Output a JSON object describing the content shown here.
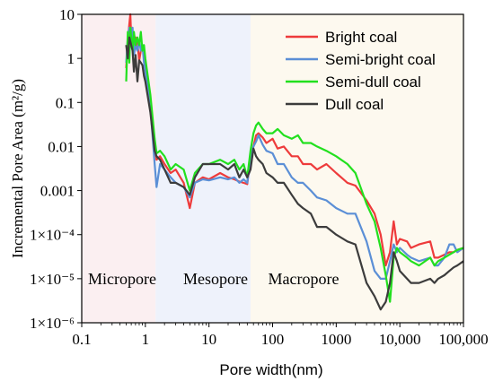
{
  "chart_data": {
    "type": "line",
    "xlabel": "Pore width(nm)",
    "ylabel": "Incremental Pore Area (m²/g)",
    "x_scale": "log",
    "y_scale": "log",
    "xlim": [
      0.1,
      100000
    ],
    "ylim": [
      1e-06,
      10
    ],
    "x_ticks": [
      {
        "value": 0.1,
        "label": "0.1"
      },
      {
        "value": 1,
        "label": "1"
      },
      {
        "value": 10,
        "label": "10"
      },
      {
        "value": 100,
        "label": "100"
      },
      {
        "value": 1000,
        "label": "1000"
      },
      {
        "value": 10000,
        "label": "10,000"
      },
      {
        "value": 100000,
        "label": "100,000"
      }
    ],
    "y_ticks": [
      {
        "value": 10,
        "label": "10"
      },
      {
        "value": 1,
        "label": "1"
      },
      {
        "value": 0.1,
        "label": "0.1"
      },
      {
        "value": 0.01,
        "label": "0.01"
      },
      {
        "value": 0.001,
        "label": "0.001"
      },
      {
        "value": 0.0001,
        "label": "1×10⁻⁴"
      },
      {
        "value": 1e-05,
        "label": "1×10⁻⁵"
      },
      {
        "value": 1e-06,
        "label": "1×10⁻⁶"
      }
    ],
    "regions": [
      {
        "label": "Micropore",
        "from": 0.1,
        "to": 1.45,
        "color": "#fbeff1"
      },
      {
        "label": "Mesopore",
        "from": 1.45,
        "to": 45,
        "color": "#eef2fb"
      },
      {
        "label": "Macropore",
        "from": 45,
        "to": 100000,
        "color": "#fdf9ef"
      }
    ],
    "legend_position": "top-right",
    "series": [
      {
        "name": "Bright coal",
        "color": "#ee3b3b",
        "points": [
          [
            0.5,
            0.6
          ],
          [
            0.53,
            2.5
          ],
          [
            0.56,
            6
          ],
          [
            0.58,
            10
          ],
          [
            0.6,
            3
          ],
          [
            0.63,
            4
          ],
          [
            0.66,
            2
          ],
          [
            0.7,
            3
          ],
          [
            0.75,
            2.2
          ],
          [
            0.8,
            0.9
          ],
          [
            0.85,
            1.5
          ],
          [
            0.9,
            2
          ],
          [
            0.95,
            1.2
          ],
          [
            1.0,
            0.7
          ],
          [
            1.2,
            0.12
          ],
          [
            1.4,
            0.01
          ],
          [
            1.5,
            0.005
          ],
          [
            1.7,
            0.006
          ],
          [
            2.0,
            0.004
          ],
          [
            2.5,
            0.0025
          ],
          [
            3.0,
            0.003
          ],
          [
            4.0,
            0.0015
          ],
          [
            5.0,
            0.0004
          ],
          [
            6.0,
            0.0015
          ],
          [
            8.0,
            0.002
          ],
          [
            10,
            0.0018
          ],
          [
            15,
            0.0025
          ],
          [
            20,
            0.002
          ],
          [
            25,
            0.0018
          ],
          [
            30,
            0.0016
          ],
          [
            35,
            0.0015
          ],
          [
            40,
            0.0014
          ],
          [
            45,
            0.006
          ],
          [
            50,
            0.01
          ],
          [
            55,
            0.018
          ],
          [
            60,
            0.02
          ],
          [
            70,
            0.016
          ],
          [
            80,
            0.012
          ],
          [
            100,
            0.015
          ],
          [
            120,
            0.009
          ],
          [
            150,
            0.01
          ],
          [
            200,
            0.006
          ],
          [
            250,
            0.006
          ],
          [
            300,
            0.004
          ],
          [
            400,
            0.004
          ],
          [
            500,
            0.003
          ],
          [
            700,
            0.004
          ],
          [
            1000,
            0.0025
          ],
          [
            1500,
            0.0015
          ],
          [
            2000,
            0.0013
          ],
          [
            3000,
            0.0006
          ],
          [
            4000,
            0.0003
          ],
          [
            5000,
            0.0001
          ],
          [
            6000,
            2e-05
          ],
          [
            7000,
            4e-05
          ],
          [
            8000,
            0.0002
          ],
          [
            9000,
            6e-05
          ],
          [
            10000,
            8e-05
          ],
          [
            13000,
            7e-05
          ],
          [
            15000,
            5e-05
          ],
          [
            20000,
            6e-05
          ],
          [
            30000,
            7e-05
          ],
          [
            35000,
            3e-05
          ],
          [
            40000,
            3e-05
          ],
          [
            50000,
            3.5e-05
          ],
          [
            60000,
            4e-05
          ],
          [
            70000,
            4e-05
          ],
          [
            80000,
            4.5e-05
          ],
          [
            100000,
            5e-05
          ]
        ]
      },
      {
        "name": "Semi-bright coal",
        "color": "#5b8fd6",
        "points": [
          [
            0.5,
            0.8
          ],
          [
            0.53,
            3
          ],
          [
            0.56,
            5
          ],
          [
            0.6,
            3
          ],
          [
            0.63,
            5
          ],
          [
            0.66,
            1.2
          ],
          [
            0.7,
            2
          ],
          [
            0.75,
            1.5
          ],
          [
            0.8,
            2.5
          ],
          [
            0.85,
            1.5
          ],
          [
            0.9,
            2
          ],
          [
            0.95,
            0.8
          ],
          [
            1.0,
            0.5
          ],
          [
            1.2,
            0.08
          ],
          [
            1.4,
            0.004
          ],
          [
            1.5,
            0.0012
          ],
          [
            1.7,
            0.004
          ],
          [
            2.0,
            0.003
          ],
          [
            2.5,
            0.002
          ],
          [
            3.0,
            0.0015
          ],
          [
            4.0,
            0.0012
          ],
          [
            5.0,
            0.0007
          ],
          [
            6.0,
            0.0015
          ],
          [
            8.0,
            0.0018
          ],
          [
            10,
            0.0017
          ],
          [
            15,
            0.002
          ],
          [
            20,
            0.0018
          ],
          [
            25,
            0.002
          ],
          [
            30,
            0.0015
          ],
          [
            35,
            0.0018
          ],
          [
            40,
            0.0015
          ],
          [
            45,
            0.006
          ],
          [
            50,
            0.01
          ],
          [
            55,
            0.013
          ],
          [
            60,
            0.018
          ],
          [
            70,
            0.011
          ],
          [
            80,
            0.008
          ],
          [
            100,
            0.007
          ],
          [
            120,
            0.004
          ],
          [
            150,
            0.004
          ],
          [
            200,
            0.002
          ],
          [
            250,
            0.0015
          ],
          [
            300,
            0.0015
          ],
          [
            400,
            0.001
          ],
          [
            500,
            0.0007
          ],
          [
            700,
            0.0006
          ],
          [
            1000,
            0.0004
          ],
          [
            1500,
            0.0003
          ],
          [
            2000,
            0.0003
          ],
          [
            3000,
            7e-05
          ],
          [
            4000,
            1.5e-05
          ],
          [
            5000,
            1e-05
          ],
          [
            6000,
            1e-05
          ],
          [
            7000,
            2.5e-05
          ],
          [
            8000,
            6e-05
          ],
          [
            9000,
            4e-05
          ],
          [
            10000,
            5e-05
          ],
          [
            13000,
            3.5e-05
          ],
          [
            15000,
            3e-05
          ],
          [
            20000,
            2.5e-05
          ],
          [
            30000,
            3e-05
          ],
          [
            35000,
            2e-05
          ],
          [
            40000,
            2e-05
          ],
          [
            50000,
            3e-05
          ],
          [
            60000,
            6e-05
          ],
          [
            70000,
            6e-05
          ],
          [
            80000,
            4e-05
          ],
          [
            100000,
            5e-05
          ]
        ]
      },
      {
        "name": "Semi-dull coal",
        "color": "#22e01e",
        "points": [
          [
            0.5,
            0.3
          ],
          [
            0.53,
            4
          ],
          [
            0.56,
            0.8
          ],
          [
            0.58,
            5
          ],
          [
            0.6,
            3
          ],
          [
            0.63,
            1.5
          ],
          [
            0.66,
            4
          ],
          [
            0.7,
            2
          ],
          [
            0.75,
            3
          ],
          [
            0.8,
            2
          ],
          [
            0.85,
            4
          ],
          [
            0.9,
            1.5
          ],
          [
            0.95,
            2
          ],
          [
            1.0,
            1
          ],
          [
            1.2,
            0.15
          ],
          [
            1.4,
            0.015
          ],
          [
            1.5,
            0.007
          ],
          [
            1.7,
            0.008
          ],
          [
            2.0,
            0.006
          ],
          [
            2.5,
            0.003
          ],
          [
            3.0,
            0.004
          ],
          [
            4.0,
            0.003
          ],
          [
            5.0,
            0.001
          ],
          [
            6.0,
            0.0025
          ],
          [
            8.0,
            0.004
          ],
          [
            10,
            0.004
          ],
          [
            15,
            0.005
          ],
          [
            20,
            0.004
          ],
          [
            25,
            0.005
          ],
          [
            30,
            0.003
          ],
          [
            35,
            0.004
          ],
          [
            40,
            0.002
          ],
          [
            45,
            0.008
          ],
          [
            50,
            0.02
          ],
          [
            55,
            0.03
          ],
          [
            60,
            0.035
          ],
          [
            70,
            0.025
          ],
          [
            80,
            0.02
          ],
          [
            100,
            0.02
          ],
          [
            120,
            0.025
          ],
          [
            150,
            0.018
          ],
          [
            200,
            0.015
          ],
          [
            250,
            0.018
          ],
          [
            300,
            0.012
          ],
          [
            400,
            0.012
          ],
          [
            500,
            0.01
          ],
          [
            700,
            0.008
          ],
          [
            1000,
            0.006
          ],
          [
            1500,
            0.004
          ],
          [
            2000,
            0.0025
          ],
          [
            3000,
            0.0005
          ],
          [
            4000,
            0.0002
          ],
          [
            5000,
            5e-05
          ],
          [
            6000,
            1.2e-05
          ],
          [
            7000,
            3e-06
          ],
          [
            8000,
            3e-05
          ],
          [
            9000,
            5e-05
          ],
          [
            10000,
            4e-05
          ],
          [
            13000,
            3e-05
          ],
          [
            15000,
            2.5e-05
          ],
          [
            20000,
            2e-05
          ],
          [
            30000,
            3e-05
          ],
          [
            35000,
            2e-05
          ],
          [
            40000,
            2.5e-05
          ],
          [
            50000,
            3e-05
          ],
          [
            60000,
            3.5e-05
          ],
          [
            70000,
            4e-05
          ],
          [
            80000,
            4.5e-05
          ],
          [
            100000,
            5e-05
          ]
        ]
      },
      {
        "name": "Dull coal",
        "color": "#3c3c3c",
        "points": [
          [
            0.5,
            2
          ],
          [
            0.53,
            1
          ],
          [
            0.56,
            3
          ],
          [
            0.6,
            2
          ],
          [
            0.63,
            1.5
          ],
          [
            0.66,
            0.5
          ],
          [
            0.7,
            1.2
          ],
          [
            0.75,
            0.3
          ],
          [
            0.8,
            0.9
          ],
          [
            0.85,
            0.8
          ],
          [
            0.9,
            0.7
          ],
          [
            0.95,
            0.4
          ],
          [
            1.0,
            0.3
          ],
          [
            1.2,
            0.06
          ],
          [
            1.4,
            0.008
          ],
          [
            1.5,
            0.006
          ],
          [
            1.7,
            0.005
          ],
          [
            2.0,
            0.003
          ],
          [
            2.5,
            0.0015
          ],
          [
            3.0,
            0.0015
          ],
          [
            4.0,
            0.0012
          ],
          [
            5.0,
            0.0008
          ],
          [
            6.0,
            0.002
          ],
          [
            8.0,
            0.004
          ],
          [
            10,
            0.004
          ],
          [
            15,
            0.004
          ],
          [
            20,
            0.003
          ],
          [
            25,
            0.004
          ],
          [
            30,
            0.002
          ],
          [
            35,
            0.003
          ],
          [
            40,
            0.002
          ],
          [
            45,
            0.003
          ],
          [
            50,
            0.009
          ],
          [
            55,
            0.006
          ],
          [
            60,
            0.005
          ],
          [
            70,
            0.004
          ],
          [
            80,
            0.0025
          ],
          [
            100,
            0.002
          ],
          [
            120,
            0.0015
          ],
          [
            150,
            0.0015
          ],
          [
            200,
            0.0008
          ],
          [
            250,
            0.0005
          ],
          [
            300,
            0.0004
          ],
          [
            400,
            0.0003
          ],
          [
            500,
            0.00015
          ],
          [
            700,
            0.00015
          ],
          [
            1000,
            0.0001
          ],
          [
            1500,
            7e-05
          ],
          [
            2000,
            6e-05
          ],
          [
            3000,
            8e-06
          ],
          [
            4000,
            4e-06
          ],
          [
            5000,
            2e-06
          ],
          [
            6000,
            3e-06
          ],
          [
            7000,
            8e-06
          ],
          [
            8000,
            4e-05
          ],
          [
            9000,
            2.5e-05
          ],
          [
            10000,
            1.5e-05
          ],
          [
            13000,
            1e-05
          ],
          [
            15000,
            8e-06
          ],
          [
            20000,
            8e-06
          ],
          [
            30000,
            1e-05
          ],
          [
            35000,
            8e-06
          ],
          [
            40000,
            1e-05
          ],
          [
            50000,
            1.2e-05
          ],
          [
            60000,
            1.5e-05
          ],
          [
            70000,
            1.8e-05
          ],
          [
            80000,
            2e-05
          ],
          [
            100000,
            2.5e-05
          ]
        ]
      }
    ]
  }
}
